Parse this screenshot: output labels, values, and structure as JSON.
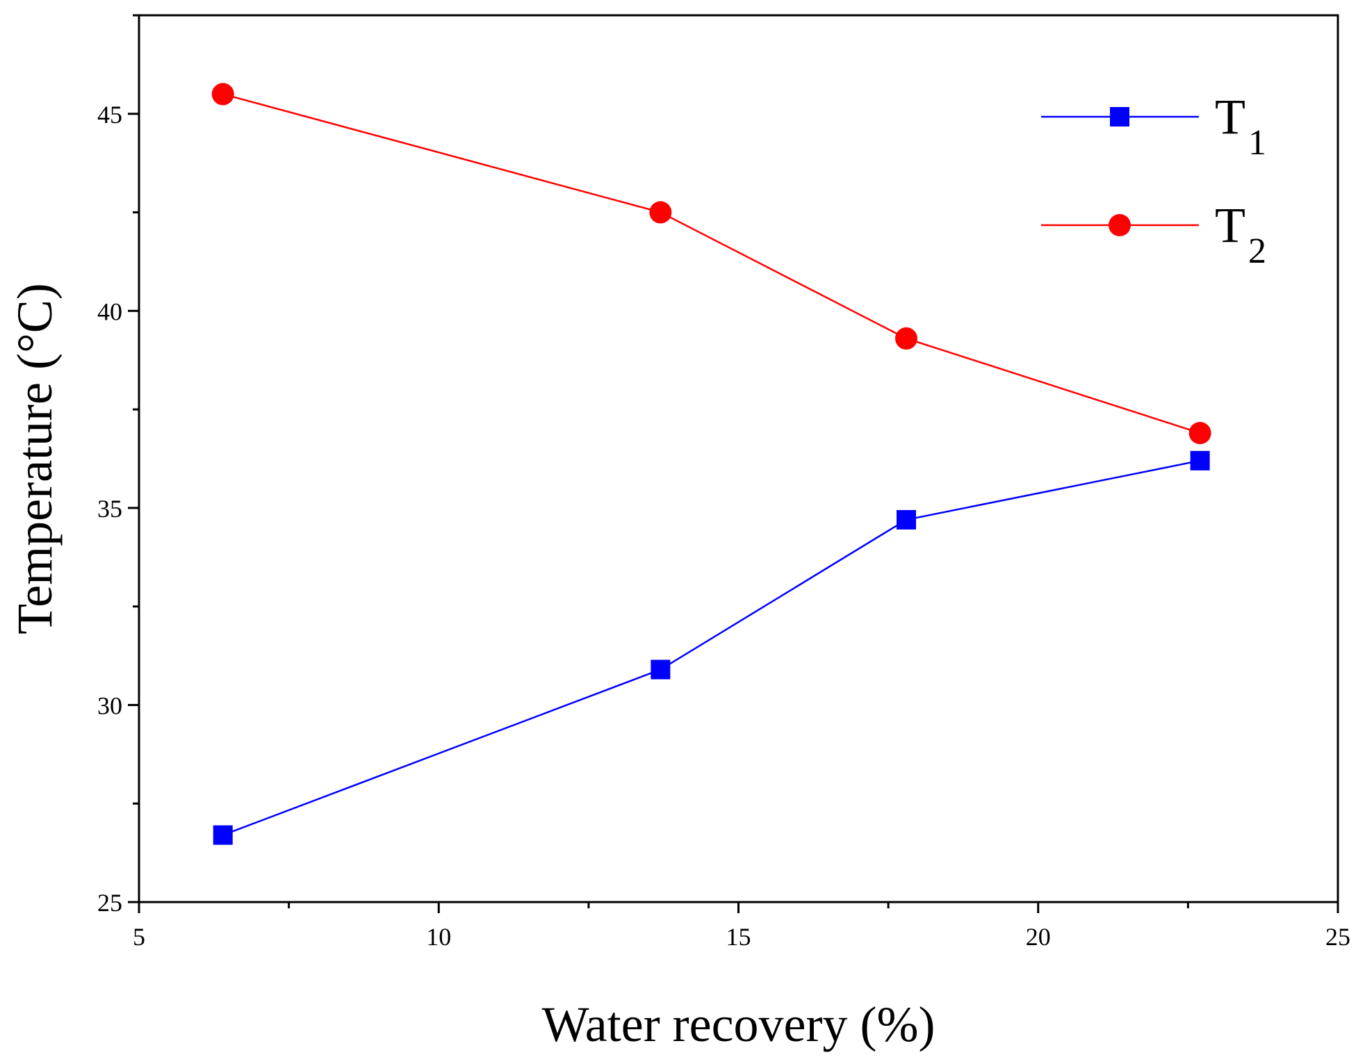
{
  "chart_data": {
    "type": "line",
    "xlabel": "Water recovery (%)",
    "ylabel": "Temperature (°C)",
    "xlim": [
      5,
      25
    ],
    "ylim": [
      25,
      47.5
    ],
    "x_ticks": [
      "5",
      "10",
      "15",
      "20",
      "25"
    ],
    "y_ticks": [
      "25",
      "30",
      "35",
      "40",
      "45"
    ],
    "legend_position": "top-right",
    "series": [
      {
        "name": "T",
        "subscript": "1",
        "color": "#0000ff",
        "marker": "square",
        "x": [
          6.4,
          13.7,
          17.8,
          22.7
        ],
        "y": [
          26.7,
          30.9,
          34.7,
          36.2
        ]
      },
      {
        "name": "T",
        "subscript": "2",
        "color": "#ff0000",
        "marker": "circle",
        "x": [
          6.4,
          13.7,
          17.8,
          22.7
        ],
        "y": [
          45.5,
          42.5,
          39.3,
          36.9
        ]
      }
    ]
  }
}
